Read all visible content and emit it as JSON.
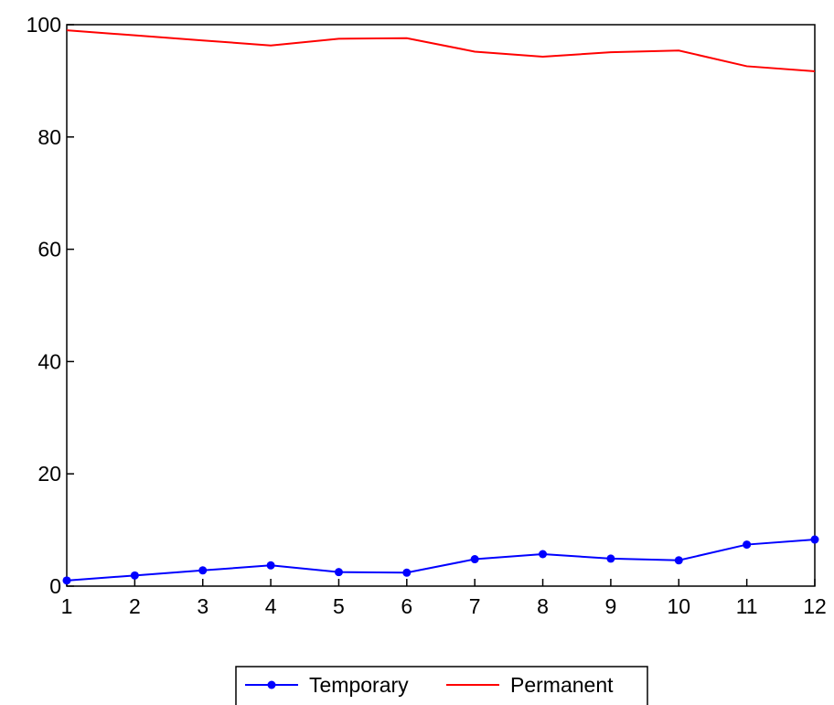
{
  "chart_data": {
    "type": "line",
    "title": "",
    "xlabel": "",
    "ylabel": "",
    "x": [
      1,
      2,
      3,
      4,
      5,
      6,
      7,
      8,
      9,
      10,
      11,
      12
    ],
    "xlim": [
      1,
      12
    ],
    "ylim": [
      0,
      100
    ],
    "yticks": [
      0,
      20,
      40,
      60,
      80,
      100
    ],
    "grid": false,
    "legend_position": "bottom",
    "series": [
      {
        "name": "Temporary",
        "color": "#0000ff",
        "markers": true,
        "values": [
          1.0,
          1.9,
          2.8,
          3.7,
          2.5,
          2.4,
          4.8,
          5.7,
          4.9,
          4.6,
          7.4,
          8.3
        ]
      },
      {
        "name": "Permanent",
        "color": "#ff0000",
        "markers": false,
        "values": [
          99.0,
          98.1,
          97.2,
          96.3,
          97.5,
          97.6,
          95.2,
          94.3,
          95.1,
          95.4,
          92.6,
          91.7
        ]
      }
    ]
  }
}
